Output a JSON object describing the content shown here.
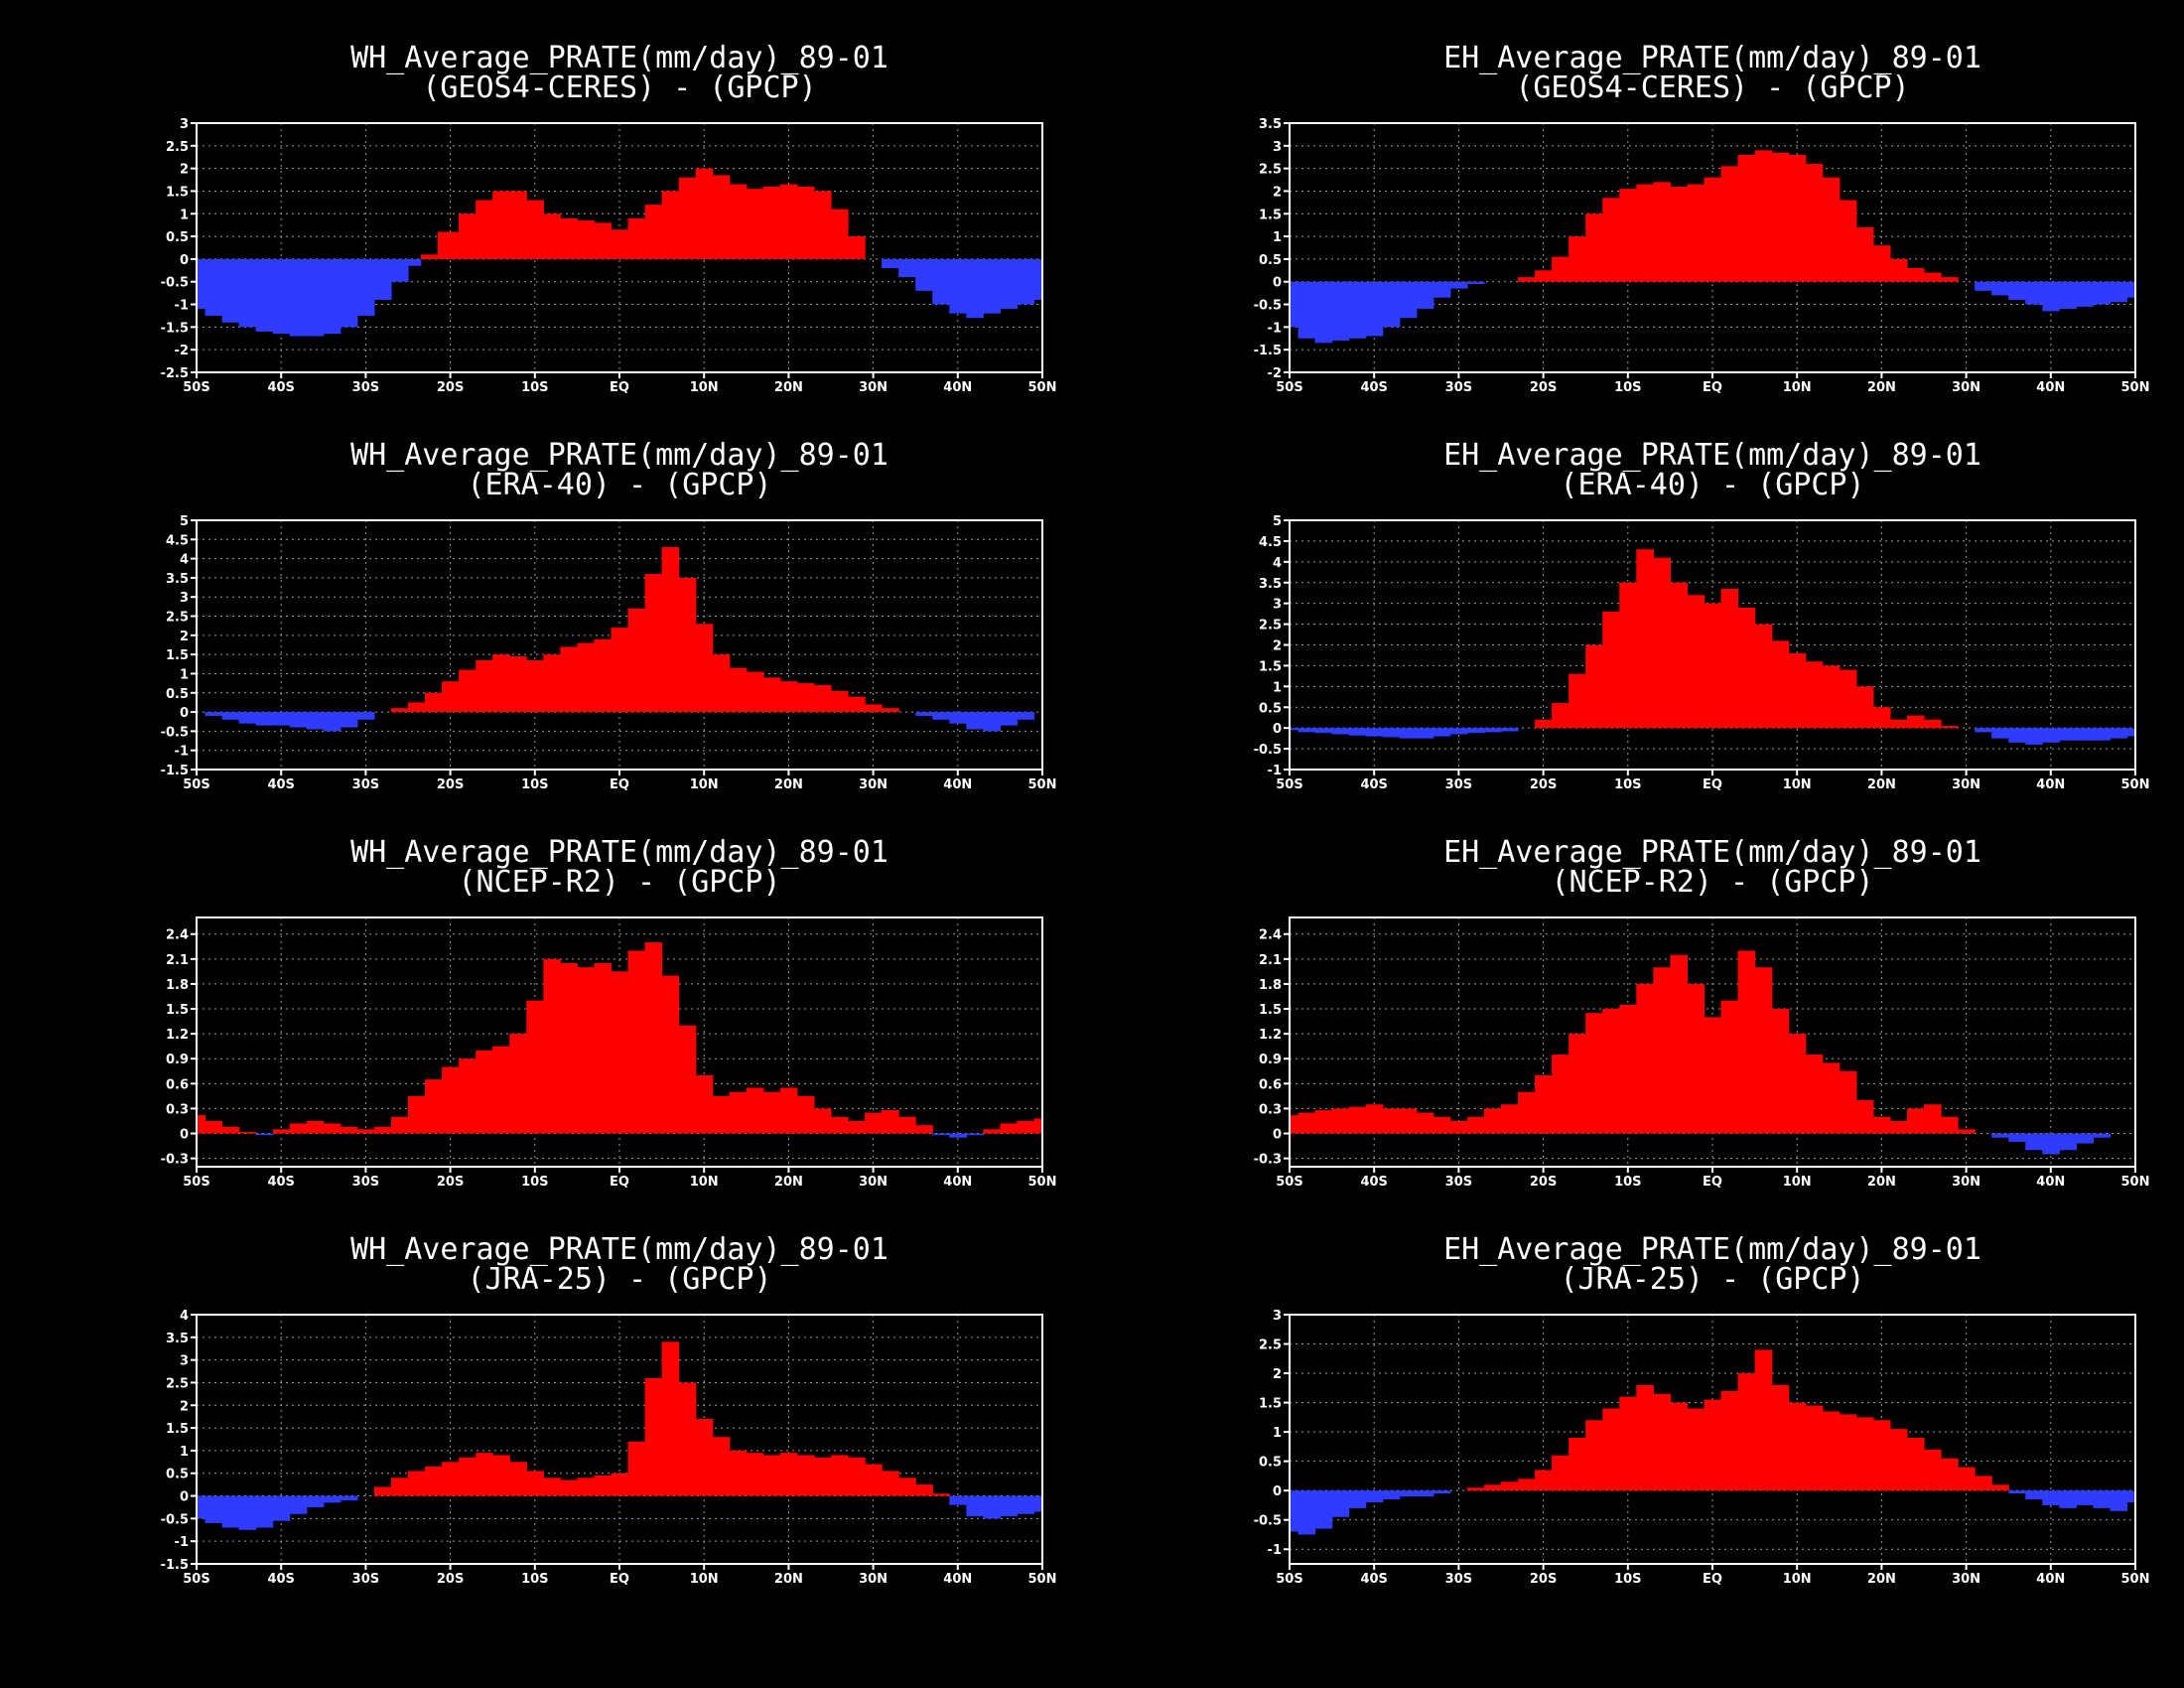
{
  "colors": {
    "background": "#000000",
    "positive": "#ff0000",
    "negative": "#2f3cff",
    "axis": "#ffffff",
    "grid": "#9a9a9a"
  },
  "x_ticks": [
    "50S",
    "40S",
    "30S",
    "20S",
    "10S",
    "EQ",
    "10N",
    "20N",
    "30N",
    "40N",
    "50N"
  ],
  "chart_data": [
    {
      "type": "area",
      "id": "wh-geos4",
      "title": "WH_Average_PRATE(mm/day)_89-01",
      "subtitle": "(GEOS4-CERES) - (GPCP)",
      "xlabel": "",
      "ylabel": "",
      "ylim": [
        -2.5,
        3
      ],
      "y_ticks": [
        "-2.5",
        "-2",
        "-1.5",
        "-1",
        "-0.5",
        "0",
        "0.5",
        "1",
        "1.5",
        "2",
        "2.5",
        "3"
      ],
      "x": [
        -50,
        -48,
        -46,
        -44,
        -42,
        -40,
        -38,
        -36,
        -34,
        -32,
        -30,
        -28,
        -26,
        -24,
        -23,
        -20,
        -18,
        -16,
        -14,
        -12,
        -10,
        -8,
        -6,
        -4,
        -2,
        0,
        2,
        4,
        6,
        8,
        10,
        12,
        14,
        16,
        18,
        20,
        22,
        24,
        26,
        28,
        30,
        32,
        34,
        36,
        38,
        40,
        42,
        44,
        46,
        48,
        50
      ],
      "values": [
        -1.1,
        -1.25,
        -1.4,
        -1.5,
        -1.6,
        -1.65,
        -1.7,
        -1.7,
        -1.65,
        -1.5,
        -1.25,
        -0.9,
        -0.5,
        -0.15,
        0.1,
        0.6,
        1.0,
        1.3,
        1.5,
        1.5,
        1.3,
        1.0,
        0.9,
        0.85,
        0.8,
        0.65,
        0.9,
        1.2,
        1.5,
        1.8,
        2.0,
        1.85,
        1.65,
        1.55,
        1.6,
        1.65,
        1.6,
        1.5,
        1.1,
        0.5,
        0,
        -0.2,
        -0.4,
        -0.7,
        -1.0,
        -1.2,
        -1.3,
        -1.2,
        -1.1,
        -1.0,
        -0.9
      ]
    },
    {
      "type": "area",
      "id": "eh-geos4",
      "title": "EH_Average_PRATE(mm/day)_89-01",
      "subtitle": "(GEOS4-CERES) - (GPCP)",
      "xlabel": "",
      "ylabel": "",
      "ylim": [
        -2,
        3.5
      ],
      "y_ticks": [
        "-2",
        "-1.5",
        "-1",
        "-0.5",
        "0",
        "0.5",
        "1",
        "1.5",
        "2",
        "2.5",
        "3",
        "3.5"
      ],
      "x": [
        -50,
        -48,
        -46,
        -44,
        -42,
        -40,
        -38,
        -36,
        -34,
        -32,
        -30,
        -28,
        -26,
        -24,
        -22,
        -20,
        -18,
        -16,
        -14,
        -12,
        -10,
        -8,
        -6,
        -4,
        -2,
        0,
        2,
        4,
        6,
        8,
        10,
        12,
        14,
        16,
        18,
        20,
        22,
        24,
        26,
        28,
        30,
        32,
        34,
        36,
        38,
        40,
        42,
        44,
        46,
        48,
        50
      ],
      "values": [
        -1.0,
        -1.25,
        -1.35,
        -1.3,
        -1.25,
        -1.2,
        -1.0,
        -0.8,
        -0.6,
        -0.35,
        -0.15,
        -0.05,
        0,
        0,
        0.1,
        0.25,
        0.55,
        1.0,
        1.5,
        1.85,
        2.05,
        2.15,
        2.2,
        2.1,
        2.15,
        2.3,
        2.55,
        2.8,
        2.9,
        2.85,
        2.8,
        2.6,
        2.3,
        1.8,
        1.2,
        0.8,
        0.5,
        0.3,
        0.2,
        0.1,
        0,
        -0.2,
        -0.3,
        -0.4,
        -0.5,
        -0.65,
        -0.6,
        -0.55,
        -0.5,
        -0.45,
        -0.35
      ]
    },
    {
      "type": "area",
      "id": "wh-era40",
      "title": "WH_Average_PRATE(mm/day)_89-01",
      "subtitle": "(ERA-40) - (GPCP)",
      "xlabel": "",
      "ylabel": "",
      "ylim": [
        -1.5,
        5
      ],
      "y_ticks": [
        "-1.5",
        "-1",
        "-0.5",
        "0",
        "0.5",
        "1",
        "1.5",
        "2",
        "2.5",
        "3",
        "3.5",
        "4",
        "4.5",
        "5"
      ],
      "x": [
        -50,
        -48,
        -46,
        -44,
        -42,
        -40,
        -38,
        -36,
        -34,
        -32,
        -30,
        -28,
        -26,
        -24,
        -22,
        -20,
        -18,
        -16,
        -14,
        -12,
        -10,
        -8,
        -6,
        -4,
        -2,
        0,
        2,
        4,
        6,
        8,
        10,
        12,
        14,
        16,
        18,
        20,
        22,
        24,
        26,
        28,
        30,
        32,
        34,
        36,
        38,
        40,
        42,
        44,
        46,
        48,
        50
      ],
      "values": [
        0,
        -0.1,
        -0.2,
        -0.3,
        -0.35,
        -0.35,
        -0.4,
        -0.45,
        -0.5,
        -0.4,
        -0.2,
        0,
        0.1,
        0.25,
        0.5,
        0.8,
        1.1,
        1.35,
        1.5,
        1.45,
        1.35,
        1.5,
        1.7,
        1.8,
        1.9,
        2.2,
        2.7,
        3.6,
        4.3,
        3.5,
        2.3,
        1.5,
        1.15,
        1.05,
        0.9,
        0.8,
        0.75,
        0.7,
        0.55,
        0.4,
        0.2,
        0.1,
        0,
        -0.1,
        -0.2,
        -0.3,
        -0.45,
        -0.5,
        -0.35,
        -0.2,
        0
      ]
    },
    {
      "type": "area",
      "id": "eh-era40",
      "title": "EH_Average_PRATE(mm/day)_89-01",
      "subtitle": "(ERA-40) - (GPCP)",
      "xlabel": "",
      "ylabel": "",
      "ylim": [
        -1,
        5
      ],
      "y_ticks": [
        "-1",
        "-0.5",
        "0",
        "0.5",
        "1",
        "1.5",
        "2",
        "2.5",
        "3",
        "3.5",
        "4",
        "4.5",
        "5"
      ],
      "x": [
        -50,
        -48,
        -46,
        -44,
        -42,
        -40,
        -38,
        -36,
        -34,
        -32,
        -30,
        -28,
        -26,
        -24,
        -22,
        -20,
        -18,
        -16,
        -14,
        -12,
        -10,
        -8,
        -6,
        -4,
        -2,
        0,
        2,
        4,
        6,
        8,
        10,
        12,
        14,
        16,
        18,
        20,
        22,
        24,
        26,
        28,
        30,
        32,
        34,
        36,
        38,
        40,
        42,
        44,
        46,
        48,
        50
      ],
      "values": [
        -0.05,
        -0.1,
        -0.12,
        -0.15,
        -0.18,
        -0.2,
        -0.22,
        -0.25,
        -0.25,
        -0.2,
        -0.15,
        -0.12,
        -0.1,
        -0.08,
        0,
        0.2,
        0.6,
        1.3,
        2.0,
        2.8,
        3.5,
        4.3,
        4.1,
        3.5,
        3.2,
        3.0,
        3.35,
        2.9,
        2.5,
        2.1,
        1.8,
        1.6,
        1.5,
        1.4,
        1.0,
        0.5,
        0.2,
        0.3,
        0.2,
        0.05,
        0,
        -0.1,
        -0.25,
        -0.35,
        -0.4,
        -0.35,
        -0.3,
        -0.3,
        -0.3,
        -0.25,
        -0.2
      ]
    },
    {
      "type": "area",
      "id": "wh-ncep",
      "title": "WH_Average_PRATE(mm/day)_89-01",
      "subtitle": "(NCEP-R2) - (GPCP)",
      "xlabel": "",
      "ylabel": "",
      "ylim": [
        -0.4,
        2.6
      ],
      "y_ticks": [
        "-0.3",
        "0",
        "0.3",
        "0.6",
        "0.9",
        "1.2",
        "1.5",
        "1.8",
        "2.1",
        "2.4"
      ],
      "x": [
        -50,
        -48,
        -46,
        -44,
        -42,
        -40,
        -38,
        -36,
        -34,
        -32,
        -30,
        -28,
        -26,
        -24,
        -22,
        -20,
        -18,
        -16,
        -14,
        -12,
        -10,
        -8,
        -6,
        -4,
        -2,
        0,
        2,
        4,
        6,
        8,
        10,
        12,
        14,
        16,
        18,
        20,
        22,
        24,
        26,
        28,
        30,
        32,
        34,
        36,
        38,
        40,
        42,
        44,
        46,
        48,
        50
      ],
      "values": [
        0.22,
        0.15,
        0.08,
        0.02,
        -0.02,
        0.05,
        0.12,
        0.15,
        0.12,
        0.08,
        0.05,
        0.08,
        0.2,
        0.45,
        0.65,
        0.8,
        0.9,
        1.0,
        1.05,
        1.2,
        1.6,
        2.1,
        2.05,
        2.0,
        2.05,
        1.95,
        2.2,
        2.3,
        1.9,
        1.3,
        0.7,
        0.45,
        0.5,
        0.55,
        0.5,
        0.55,
        0.45,
        0.3,
        0.2,
        0.15,
        0.25,
        0.28,
        0.2,
        0.1,
        -0.02,
        -0.05,
        -0.02,
        0.05,
        0.12,
        0.15,
        0.18
      ]
    },
    {
      "type": "area",
      "id": "eh-ncep",
      "title": "EH_Average_PRATE(mm/day)_89-01",
      "subtitle": "(NCEP-R2) - (GPCP)",
      "xlabel": "",
      "ylabel": "",
      "ylim": [
        -0.4,
        2.6
      ],
      "y_ticks": [
        "-0.3",
        "0",
        "0.3",
        "0.6",
        "0.9",
        "1.2",
        "1.5",
        "1.8",
        "2.1",
        "2.4"
      ],
      "x": [
        -50,
        -48,
        -46,
        -44,
        -42,
        -40,
        -38,
        -36,
        -34,
        -32,
        -30,
        -28,
        -26,
        -24,
        -22,
        -20,
        -18,
        -16,
        -14,
        -12,
        -10,
        -8,
        -6,
        -4,
        -2,
        0,
        2,
        4,
        6,
        8,
        10,
        12,
        14,
        16,
        18,
        20,
        22,
        24,
        26,
        28,
        30,
        32,
        34,
        36,
        38,
        40,
        42,
        44,
        46,
        48,
        50
      ],
      "values": [
        0.22,
        0.25,
        0.28,
        0.3,
        0.32,
        0.35,
        0.3,
        0.3,
        0.25,
        0.2,
        0.15,
        0.2,
        0.3,
        0.35,
        0.5,
        0.7,
        0.95,
        1.2,
        1.45,
        1.5,
        1.55,
        1.8,
        2.0,
        2.15,
        1.8,
        1.4,
        1.6,
        2.2,
        2.0,
        1.5,
        1.2,
        0.95,
        0.85,
        0.75,
        0.4,
        0.2,
        0.15,
        0.3,
        0.35,
        0.2,
        0.05,
        0,
        -0.05,
        -0.1,
        -0.2,
        -0.25,
        -0.2,
        -0.12,
        -0.05,
        0,
        0
      ]
    },
    {
      "type": "area",
      "id": "wh-jra25",
      "title": "WH_Average_PRATE(mm/day)_89-01",
      "subtitle": "(JRA-25) - (GPCP)",
      "xlabel": "",
      "ylabel": "",
      "ylim": [
        -1.5,
        4
      ],
      "y_ticks": [
        "-1.5",
        "-1",
        "-0.5",
        "0",
        "0.5",
        "1",
        "1.5",
        "2",
        "2.5",
        "3",
        "3.5",
        "4"
      ],
      "x": [
        -50,
        -48,
        -46,
        -44,
        -42,
        -40,
        -38,
        -36,
        -34,
        -32,
        -30,
        -28,
        -26,
        -24,
        -22,
        -20,
        -18,
        -16,
        -14,
        -12,
        -10,
        -8,
        -6,
        -4,
        -2,
        0,
        2,
        4,
        6,
        8,
        10,
        12,
        14,
        16,
        18,
        20,
        22,
        24,
        26,
        28,
        30,
        32,
        34,
        36,
        38,
        40,
        42,
        44,
        46,
        48,
        50
      ],
      "values": [
        -0.5,
        -0.6,
        -0.7,
        -0.75,
        -0.7,
        -0.55,
        -0.4,
        -0.25,
        -0.15,
        -0.1,
        0,
        0.2,
        0.4,
        0.55,
        0.65,
        0.75,
        0.85,
        0.95,
        0.9,
        0.75,
        0.55,
        0.4,
        0.35,
        0.4,
        0.45,
        0.5,
        1.2,
        2.6,
        3.4,
        2.5,
        1.7,
        1.3,
        1.0,
        0.95,
        0.9,
        0.95,
        0.9,
        0.85,
        0.9,
        0.85,
        0.7,
        0.55,
        0.4,
        0.25,
        0.05,
        -0.2,
        -0.45,
        -0.5,
        -0.45,
        -0.4,
        -0.35
      ]
    },
    {
      "type": "area",
      "id": "eh-jra25",
      "title": "EH_Average_PRATE(mm/day)_89-01",
      "subtitle": "(JRA-25) - (GPCP)",
      "xlabel": "",
      "ylabel": "",
      "ylim": [
        -1.25,
        3
      ],
      "y_ticks": [
        "-1",
        "-0.5",
        "0",
        "0.5",
        "1",
        "1.5",
        "2",
        "2.5",
        "3"
      ],
      "x": [
        -50,
        -48,
        -46,
        -44,
        -42,
        -40,
        -38,
        -36,
        -34,
        -32,
        -30,
        -28,
        -26,
        -24,
        -22,
        -20,
        -18,
        -16,
        -14,
        -12,
        -10,
        -8,
        -6,
        -4,
        -2,
        0,
        2,
        4,
        6,
        8,
        10,
        12,
        14,
        16,
        18,
        20,
        22,
        24,
        26,
        28,
        30,
        32,
        34,
        36,
        38,
        40,
        42,
        44,
        46,
        48,
        50
      ],
      "values": [
        -0.7,
        -0.75,
        -0.65,
        -0.45,
        -0.3,
        -0.2,
        -0.15,
        -0.1,
        -0.1,
        -0.05,
        0,
        0.05,
        0.1,
        0.15,
        0.2,
        0.35,
        0.6,
        0.9,
        1.2,
        1.4,
        1.6,
        1.8,
        1.65,
        1.5,
        1.4,
        1.55,
        1.7,
        2.0,
        2.4,
        1.8,
        1.5,
        1.45,
        1.35,
        1.3,
        1.25,
        1.2,
        1.05,
        0.9,
        0.7,
        0.55,
        0.4,
        0.25,
        0.1,
        -0.05,
        -0.15,
        -0.25,
        -0.3,
        -0.25,
        -0.3,
        -0.35,
        -0.2
      ]
    }
  ]
}
